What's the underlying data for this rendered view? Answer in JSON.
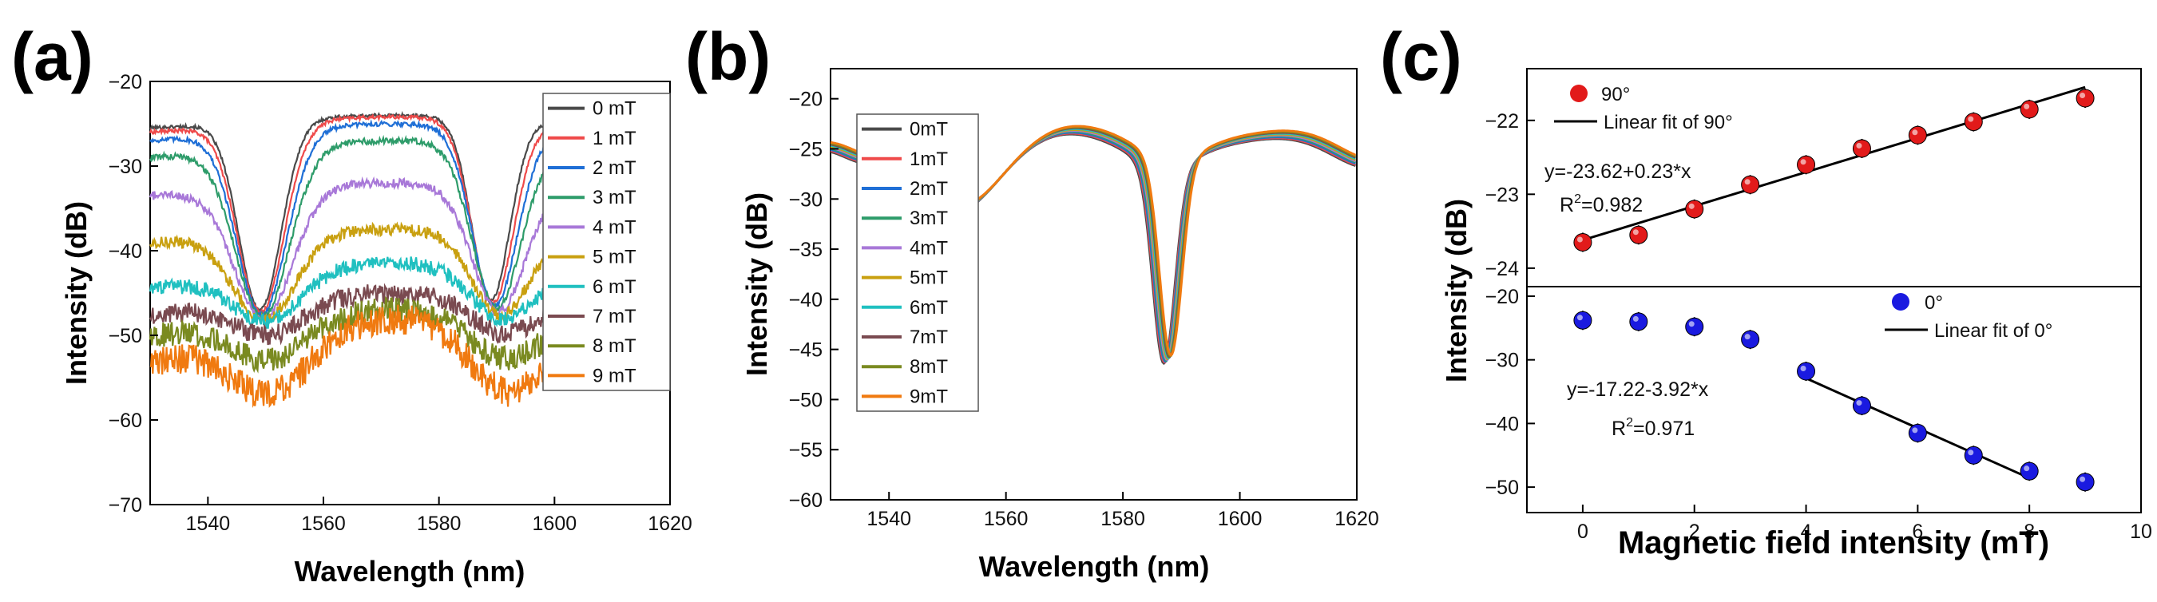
{
  "chart_data": [
    {
      "panel": "(a)",
      "type": "line",
      "xlabel": "Wavelength (nm)",
      "ylabel": "Intensity (dB)",
      "xlim": [
        1530,
        1620
      ],
      "ylim": [
        -70,
        -20
      ],
      "xticks": [
        1540,
        1560,
        1580,
        1600,
        1620
      ],
      "yticks": [
        -20,
        -30,
        -40,
        -50,
        -60,
        -70
      ],
      "dips": [
        1549,
        1589
      ],
      "series": [
        {
          "name": "0 mT",
          "color": "#4a4a4a",
          "top": -24,
          "dipmin": -47,
          "edge": -25.5
        },
        {
          "name": "1 mT",
          "color": "#ef4a4a",
          "top": -24.2,
          "dipmin": -47.3,
          "edge": -26
        },
        {
          "name": "2 mT",
          "color": "#1f6fd6",
          "top": -25,
          "dipmin": -47.6,
          "edge": -27
        },
        {
          "name": "3 mT",
          "color": "#2e9c6a",
          "top": -27,
          "dipmin": -47.8,
          "edge": -29
        },
        {
          "name": "4 mT",
          "color": "#a878d8",
          "top": -32,
          "dipmin": -48,
          "edge": -33.5
        },
        {
          "name": "5 mT",
          "color": "#c9a010",
          "top": -37.5,
          "dipmin": -48.2,
          "edge": -39
        },
        {
          "name": "6 mT",
          "color": "#20c0c0",
          "top": -41.5,
          "dipmin": -48.4,
          "edge": -44.5
        },
        {
          "name": "7 mT",
          "color": "#7a4a50",
          "top": -45,
          "dipmin": -50,
          "edge": -47.5
        },
        {
          "name": "8 mT",
          "color": "#7a8a20",
          "top": -47,
          "dipmin": -53,
          "edge": -50
        },
        {
          "name": "9 mT",
          "color": "#f07a10",
          "top": -48,
          "dipmin": -57,
          "edge": -53
        }
      ]
    },
    {
      "panel": "(b)",
      "type": "line",
      "xlabel": "Wavelength (nm)",
      "ylabel": "Intensity (dB)",
      "xlim": [
        1530,
        1620
      ],
      "ylim": [
        -60,
        -17
      ],
      "xticks": [
        1540,
        1560,
        1580,
        1600,
        1620
      ],
      "yticks": [
        -20,
        -25,
        -30,
        -35,
        -40,
        -45,
        -50,
        -55,
        -60
      ],
      "series": [
        {
          "name": "0mT",
          "color": "#4a4a4a"
        },
        {
          "name": "1mT",
          "color": "#ef4a4a"
        },
        {
          "name": "2mT",
          "color": "#1f6fd6"
        },
        {
          "name": "3mT",
          "color": "#2e9c6a"
        },
        {
          "name": "4mT",
          "color": "#a878d8"
        },
        {
          "name": "5mT",
          "color": "#c9a010"
        },
        {
          "name": "6mT",
          "color": "#20c0c0"
        },
        {
          "name": "7mT",
          "color": "#7a4a50"
        },
        {
          "name": "8mT",
          "color": "#7a8a20"
        },
        {
          "name": "9mT",
          "color": "#f07a10"
        }
      ]
    },
    {
      "panel": "(c)",
      "type": "scatter",
      "xlabel": "Magnetic field intensity (mT)",
      "ylabel": "Intensity (dB)",
      "xlim": [
        -1,
        10
      ],
      "xticks": [
        0,
        2,
        4,
        6,
        8,
        10
      ],
      "top": {
        "ylim": [
          -24.25,
          -21.3
        ],
        "yticks": [
          -24,
          -23,
          -22
        ],
        "legend_points": "90°",
        "legend_fit": "Linear fit of 90°",
        "equation": "y=-23.62+0.23*x",
        "r2_label": "R",
        "r2_sup": "2",
        "r2_value": "=0.982",
        "color": "#e21a1a",
        "x": [
          0,
          1,
          2,
          3,
          4,
          5,
          6,
          7,
          8,
          9
        ],
        "y": [
          -23.65,
          -23.55,
          -23.2,
          -22.87,
          -22.6,
          -22.38,
          -22.2,
          -22.02,
          -21.85,
          -21.7
        ],
        "fit": {
          "intercept": -23.62,
          "slope": 0.23,
          "x0": 0,
          "x1": 9
        }
      },
      "bottom": {
        "ylim": [
          -54,
          -18.5
        ],
        "yticks": [
          -20,
          -30,
          -40,
          -50
        ],
        "legend_points": "0°",
        "legend_fit": "Linear fit of 0°",
        "equation": "y=-17.22-3.92*x",
        "r2_label": "R",
        "r2_sup": "2",
        "r2_value": "=0.971",
        "color": "#1a1ae0",
        "x": [
          0,
          1,
          2,
          3,
          4,
          5,
          6,
          7,
          8,
          9
        ],
        "y": [
          -23.8,
          -24.0,
          -24.8,
          -26.8,
          -31.8,
          -37.2,
          -41.5,
          -45.0,
          -47.5,
          -49.2
        ],
        "fit": {
          "intercept": -17.22,
          "slope": -3.92,
          "x0": 4,
          "x1": 8
        }
      }
    }
  ]
}
